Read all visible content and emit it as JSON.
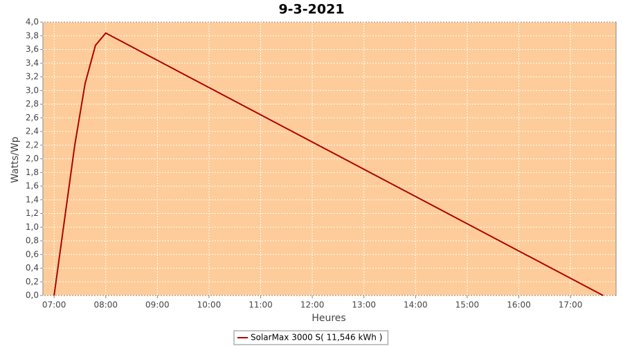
{
  "chart_data": {
    "type": "line",
    "title": "9-3-2021",
    "x_label": "Heures",
    "y_label": "Watts/Wp",
    "x": [
      "07:00",
      "07:24",
      "07:36",
      "07:48",
      "08:00",
      "17:38"
    ],
    "series": [
      {
        "name": "SolarMax 3000 S( 11,546 kWh )",
        "color": "#b00000",
        "values": [
          0,
          2.2,
          3.1,
          3.66,
          3.84,
          0
        ]
      }
    ],
    "xlim": [
      "06:47",
      "17:53"
    ],
    "xticks": [
      "07:00",
      "08:00",
      "09:00",
      "10:00",
      "11:00",
      "12:00",
      "13:00",
      "14:00",
      "15:00",
      "16:00",
      "17:00"
    ],
    "ylim": [
      0,
      4
    ],
    "yticks": [
      {
        "value": 0,
        "label": "0,0"
      },
      {
        "value": 0.2,
        "label": "0,2"
      },
      {
        "value": 0.4,
        "label": "0,4"
      },
      {
        "value": 0.6,
        "label": "0,6"
      },
      {
        "value": 0.8,
        "label": "0,8"
      },
      {
        "value": 1,
        "label": "1,0"
      },
      {
        "value": 1.2,
        "label": "1,2"
      },
      {
        "value": 1.4,
        "label": "1,4"
      },
      {
        "value": 1.6,
        "label": "1,6"
      },
      {
        "value": 1.8,
        "label": "1,8"
      },
      {
        "value": 2,
        "label": "2,0"
      },
      {
        "value": 2.2,
        "label": "2,2"
      },
      {
        "value": 2.4,
        "label": "2,4"
      },
      {
        "value": 2.6,
        "label": "2,6"
      },
      {
        "value": 2.8,
        "label": "2,8"
      },
      {
        "value": 3,
        "label": "3,0"
      },
      {
        "value": 3.2,
        "label": "3,2"
      },
      {
        "value": 3.4,
        "label": "3,4"
      },
      {
        "value": 3.6,
        "label": "3,6"
      },
      {
        "value": 3.8,
        "label": "3,8"
      },
      {
        "value": 4,
        "label": "4,0"
      }
    ],
    "grid": true,
    "plot_background": "#fecc9a",
    "legend": "bottom"
  }
}
